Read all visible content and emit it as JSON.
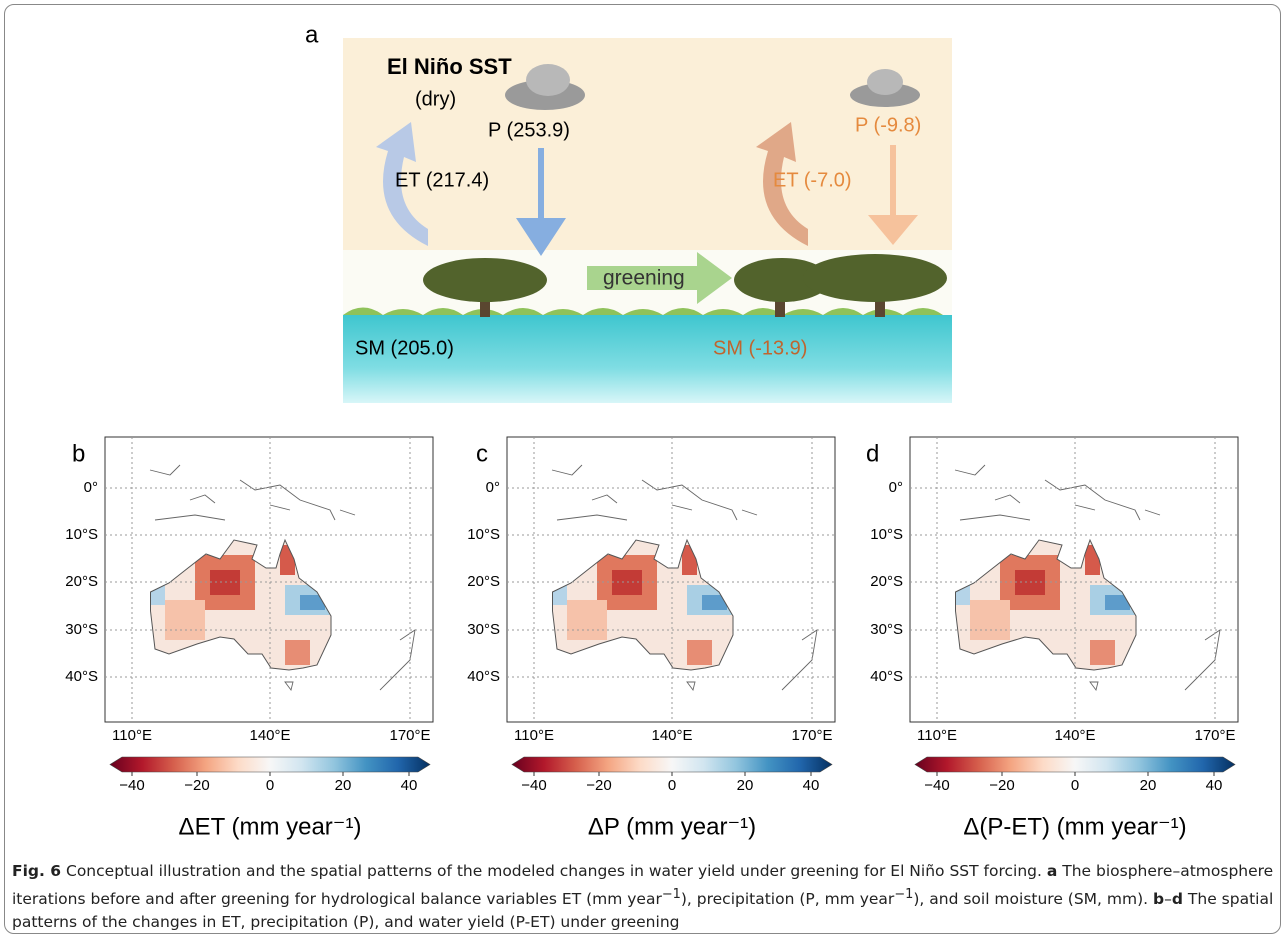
{
  "panel_a": {
    "label": "a",
    "title": "El Niño SST",
    "condition": "(dry)",
    "before": {
      "p": "P (253.9)",
      "et": "ET (217.4)",
      "sm": "SM (205.0)"
    },
    "action": "greening",
    "after": {
      "p": "P (-9.8)",
      "et": "ET (-7.0)",
      "sm": "SM (-13.9)"
    }
  },
  "maps": [
    {
      "label": "b",
      "title": "ΔET (mm year⁻¹)"
    },
    {
      "label": "c",
      "title": "ΔP (mm year⁻¹)"
    },
    {
      "label": "d",
      "title": "Δ(P-ET) (mm year⁻¹)"
    }
  ],
  "lat_ticks": [
    "0°",
    "10°S",
    "20°S",
    "30°S",
    "40°S"
  ],
  "lon_ticks": [
    "110°E",
    "140°E",
    "170°E"
  ],
  "colorbar_ticks": [
    "−40",
    "−20",
    "0",
    "20",
    "40"
  ],
  "caption": [
    {
      "text": "Fig. 6",
      "bold": true
    },
    {
      "text": " Conceptual illustration and the spatial patterns of the modeled changes in water yield under greening for El Niño SST forcing. "
    },
    {
      "text": "a",
      "bold": true
    },
    {
      "text": " The biosphere–atmosphere iterations before and after greening for hydrological balance variables ET (mm year"
    },
    {
      "text": "−1",
      "sup": true
    },
    {
      "text": "), precipitation (P, mm year"
    },
    {
      "text": "−1",
      "sup": true
    },
    {
      "text": "), and soil moisture (SM, mm). "
    },
    {
      "text": "b",
      "bold": true
    },
    {
      "text": "–"
    },
    {
      "text": "d",
      "bold": true
    },
    {
      "text": " The spatial patterns of the changes in ET, precipitation (P), and water yield (P-ET) under greening"
    }
  ]
}
